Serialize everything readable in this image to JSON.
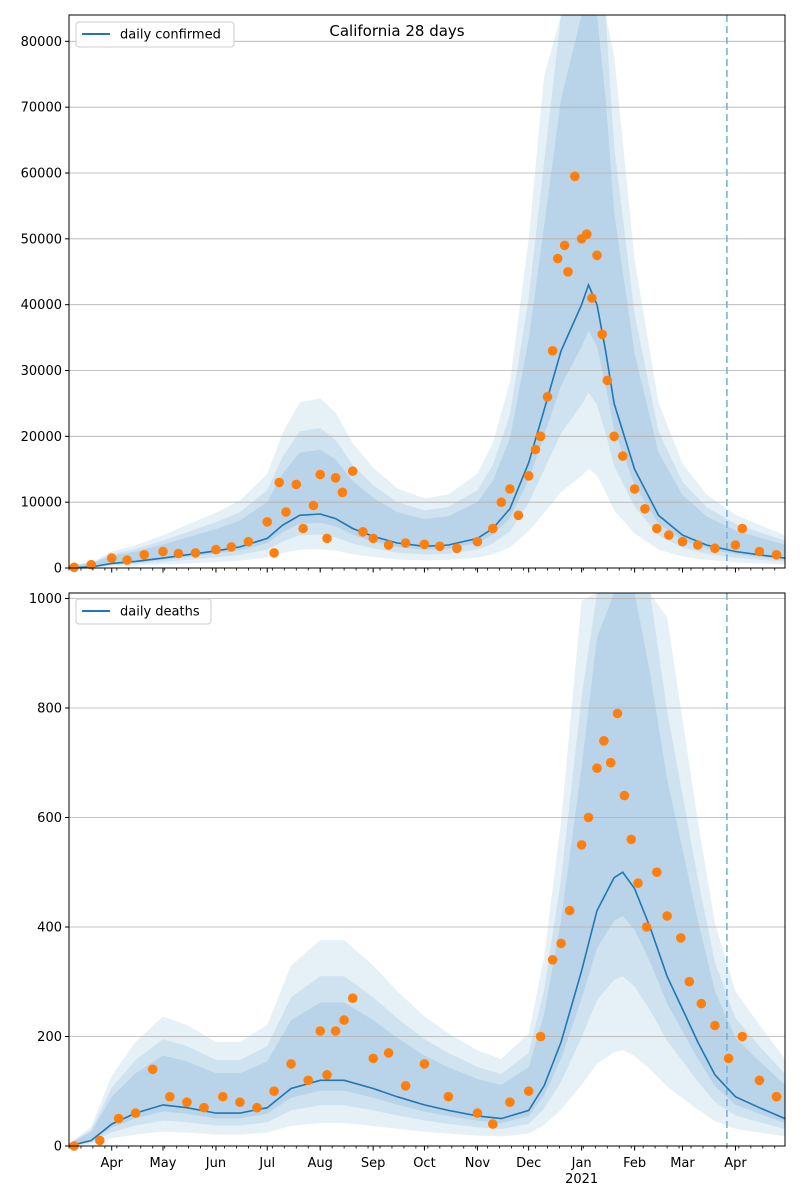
{
  "chart_data": [
    {
      "type": "line",
      "title": "California 28 days",
      "legend": {
        "entries": [
          "daily confirmed"
        ],
        "position": "top-left"
      },
      "grid": "horizontal",
      "ylim": [
        0,
        84000
      ],
      "yticks": [
        0,
        10000,
        20000,
        30000,
        40000,
        50000,
        60000,
        70000,
        80000
      ],
      "xlim": [
        "2020-03-07",
        "2021-04-30"
      ],
      "forecast_start": "2021-03-27",
      "series": [
        {
          "kind": "line",
          "color": "#1f77b4",
          "x": [
            "2020-03-07",
            "2020-03-21",
            "2020-04-01",
            "2020-04-15",
            "2020-05-01",
            "2020-05-15",
            "2020-06-01",
            "2020-06-15",
            "2020-07-01",
            "2020-07-10",
            "2020-07-20",
            "2020-08-01",
            "2020-08-10",
            "2020-08-20",
            "2020-09-01",
            "2020-09-15",
            "2020-10-01",
            "2020-10-15",
            "2020-11-01",
            "2020-11-10",
            "2020-11-20",
            "2020-12-01",
            "2020-12-10",
            "2020-12-20",
            "2021-01-01",
            "2021-01-05",
            "2021-01-10",
            "2021-01-15",
            "2021-01-20",
            "2021-02-01",
            "2021-02-15",
            "2021-03-01",
            "2021-03-15",
            "2021-04-01",
            "2021-04-15",
            "2021-04-30"
          ],
          "y": [
            0,
            200,
            700,
            1000,
            1500,
            2000,
            2600,
            3200,
            4500,
            6500,
            8000,
            8200,
            7500,
            6000,
            4800,
            3800,
            3300,
            3500,
            4500,
            6000,
            9000,
            16000,
            24000,
            33000,
            40000,
            43000,
            40000,
            33000,
            25000,
            15000,
            8000,
            5000,
            3500,
            2500,
            2000,
            1500
          ]
        },
        {
          "kind": "scatter",
          "color": "#ff7f0e",
          "x": [
            "2020-03-10",
            "2020-03-20",
            "2020-04-01",
            "2020-04-10",
            "2020-04-20",
            "2020-05-01",
            "2020-05-10",
            "2020-05-20",
            "2020-06-01",
            "2020-06-10",
            "2020-06-20",
            "2020-07-01",
            "2020-07-05",
            "2020-07-08",
            "2020-07-12",
            "2020-07-18",
            "2020-07-22",
            "2020-07-28",
            "2020-08-01",
            "2020-08-05",
            "2020-08-10",
            "2020-08-14",
            "2020-08-20",
            "2020-08-26",
            "2020-09-01",
            "2020-09-10",
            "2020-09-20",
            "2020-10-01",
            "2020-10-10",
            "2020-10-20",
            "2020-11-01",
            "2020-11-10",
            "2020-11-15",
            "2020-11-20",
            "2020-11-25",
            "2020-12-01",
            "2020-12-05",
            "2020-12-08",
            "2020-12-12",
            "2020-12-15",
            "2020-12-18",
            "2020-12-22",
            "2020-12-24",
            "2020-12-28",
            "2021-01-01",
            "2021-01-04",
            "2021-01-07",
            "2021-01-10",
            "2021-01-13",
            "2021-01-16",
            "2021-01-20",
            "2021-01-25",
            "2021-02-01",
            "2021-02-07",
            "2021-02-14",
            "2021-02-21",
            "2021-03-01",
            "2021-03-10",
            "2021-03-20",
            "2021-04-01",
            "2021-04-05",
            "2021-04-15",
            "2021-04-25"
          ],
          "y": [
            100,
            500,
            1500,
            1200,
            2000,
            2500,
            2200,
            2300,
            2800,
            3200,
            4000,
            7000,
            2300,
            13000,
            8500,
            12700,
            6000,
            9500,
            14200,
            4500,
            13700,
            11500,
            14700,
            5500,
            4500,
            3500,
            3800,
            3600,
            3300,
            3000,
            4000,
            6000,
            10000,
            12000,
            8000,
            14000,
            18000,
            20000,
            26000,
            33000,
            47000,
            49000,
            45000,
            59500,
            50000,
            50700,
            41000,
            47500,
            35500,
            28500,
            20000,
            17000,
            12000,
            9000,
            6000,
            5000,
            4000,
            3500,
            3000,
            3500,
            6000,
            2500,
            2000
          ]
        }
      ]
    },
    {
      "type": "line",
      "legend": {
        "entries": [
          "daily deaths"
        ],
        "position": "top-left"
      },
      "grid": "horizontal",
      "ylim": [
        0,
        1010
      ],
      "yticks": [
        0,
        200,
        400,
        600,
        800,
        1000
      ],
      "xlim": [
        "2020-03-07",
        "2021-04-30"
      ],
      "xticks": [
        "Apr",
        "May",
        "Jun",
        "Jul",
        "Aug",
        "Sep",
        "Oct",
        "Nov",
        "Dec",
        "Jan",
        "Feb",
        "Mar",
        "Apr"
      ],
      "xtick_year": "2021",
      "forecast_start": "2021-03-27",
      "series": [
        {
          "kind": "line",
          "color": "#1f77b4",
          "x": [
            "2020-03-07",
            "2020-03-20",
            "2020-04-01",
            "2020-04-15",
            "2020-05-01",
            "2020-05-15",
            "2020-06-01",
            "2020-06-15",
            "2020-07-01",
            "2020-07-15",
            "2020-08-01",
            "2020-08-15",
            "2020-09-01",
            "2020-09-15",
            "2020-10-01",
            "2020-10-15",
            "2020-11-01",
            "2020-11-15",
            "2020-12-01",
            "2020-12-10",
            "2020-12-20",
            "2021-01-01",
            "2021-01-10",
            "2021-01-20",
            "2021-01-25",
            "2021-02-01",
            "2021-02-10",
            "2021-02-20",
            "2021-03-01",
            "2021-03-10",
            "2021-03-20",
            "2021-04-01",
            "2021-04-15",
            "2021-04-30"
          ],
          "y": [
            0,
            10,
            40,
            60,
            75,
            70,
            60,
            60,
            70,
            105,
            120,
            120,
            105,
            90,
            75,
            65,
            55,
            50,
            65,
            110,
            190,
            320,
            430,
            490,
            500,
            470,
            400,
            310,
            250,
            190,
            130,
            90,
            70,
            50
          ]
        },
        {
          "kind": "scatter",
          "color": "#ff7f0e",
          "x": [
            "2020-03-10",
            "2020-03-25",
            "2020-04-05",
            "2020-04-15",
            "2020-04-25",
            "2020-05-05",
            "2020-05-15",
            "2020-05-25",
            "2020-06-05",
            "2020-06-15",
            "2020-06-25",
            "2020-07-05",
            "2020-07-15",
            "2020-07-25",
            "2020-08-01",
            "2020-08-05",
            "2020-08-10",
            "2020-08-15",
            "2020-08-20",
            "2020-09-01",
            "2020-09-10",
            "2020-09-20",
            "2020-10-01",
            "2020-10-15",
            "2020-11-01",
            "2020-11-10",
            "2020-11-20",
            "2020-12-01",
            "2020-12-08",
            "2020-12-15",
            "2020-12-20",
            "2020-12-25",
            "2021-01-01",
            "2021-01-05",
            "2021-01-10",
            "2021-01-14",
            "2021-01-18",
            "2021-01-22",
            "2021-01-26",
            "2021-01-30",
            "2021-02-03",
            "2021-02-08",
            "2021-02-14",
            "2021-02-20",
            "2021-02-28",
            "2021-03-05",
            "2021-03-12",
            "2021-03-20",
            "2021-03-28",
            "2021-04-05",
            "2021-04-15",
            "2021-04-25"
          ],
          "y": [
            0,
            10,
            50,
            60,
            140,
            90,
            80,
            70,
            90,
            80,
            70,
            100,
            150,
            120,
            210,
            130,
            210,
            230,
            270,
            160,
            170,
            110,
            150,
            90,
            60,
            40,
            80,
            100,
            200,
            340,
            370,
            430,
            550,
            600,
            690,
            740,
            700,
            790,
            640,
            560,
            480,
            400,
            500,
            420,
            380,
            300,
            260,
            220,
            160,
            200,
            120,
            90
          ]
        }
      ]
    }
  ]
}
